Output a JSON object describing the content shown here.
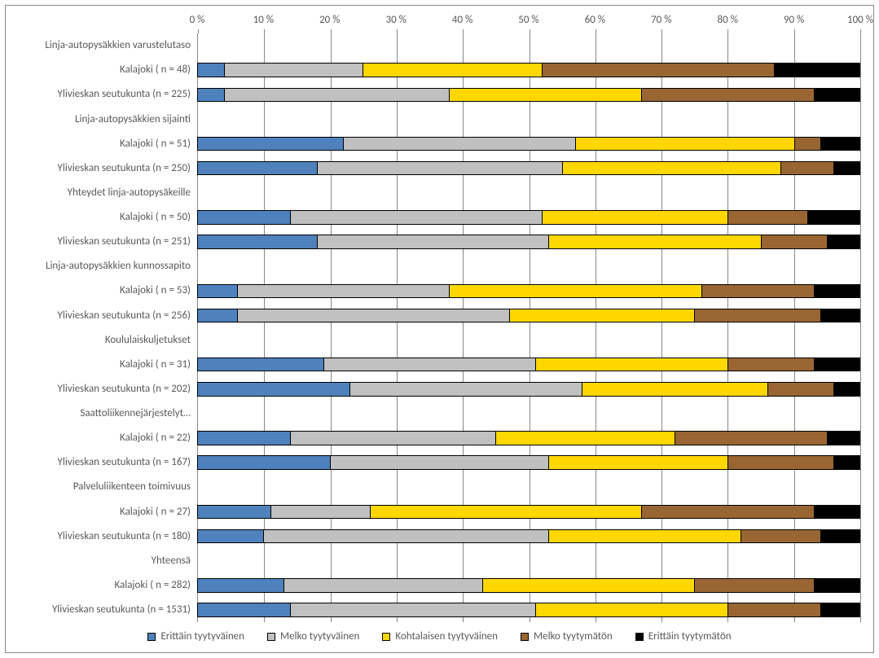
{
  "chart": {
    "type": "stacked-bar-horizontal",
    "xlim": [
      0,
      100
    ],
    "xtick_step": 10,
    "xtick_suffix": " %",
    "background_color": "#ffffff",
    "grid_color": "#888888",
    "border_color": "#888888",
    "label_color": "#595959",
    "label_fontsize": 13,
    "bar_border_color": "#000000",
    "series": [
      {
        "key": "s1",
        "label": "Erittäin tyytyväinen",
        "color": "#4f81bd"
      },
      {
        "key": "s2",
        "label": "Melko tyytyväinen",
        "color": "#c0c0c0"
      },
      {
        "key": "s3",
        "label": "Kohtalaisen tyytyväinen",
        "color": "#ffd700"
      },
      {
        "key": "s4",
        "label": "Melko tyytymätön",
        "color": "#996633"
      },
      {
        "key": "s5",
        "label": "Erittäin tyytymätön",
        "color": "#000000"
      }
    ],
    "rows": [
      {
        "label": "Linja-autopysäkkien varustelutaso",
        "values": null
      },
      {
        "label": "Kalajoki ( n = 48)",
        "values": [
          4,
          21,
          27,
          35,
          13
        ]
      },
      {
        "label": "Ylivieskan seutukunta (n = 225)",
        "values": [
          4,
          34,
          29,
          26,
          7
        ]
      },
      {
        "label": "Linja-autopysäkkien sijainti",
        "values": null
      },
      {
        "label": "Kalajoki ( n = 51)",
        "values": [
          22,
          35,
          33,
          4,
          6
        ]
      },
      {
        "label": "Ylivieskan seutukunta (n = 250)",
        "values": [
          18,
          37,
          33,
          8,
          4
        ]
      },
      {
        "label": "Yhteydet linja-autopysäkeille",
        "values": null
      },
      {
        "label": "Kalajoki ( n = 50)",
        "values": [
          14,
          38,
          28,
          12,
          8
        ]
      },
      {
        "label": "Ylivieskan seutukunta (n = 251)",
        "values": [
          18,
          35,
          32,
          10,
          5
        ]
      },
      {
        "label": "Linja-autopysäkkien kunnossapito",
        "values": null
      },
      {
        "label": "Kalajoki ( n = 53)",
        "values": [
          6,
          32,
          38,
          17,
          7
        ]
      },
      {
        "label": "Ylivieskan seutukunta (n = 256)",
        "values": [
          6,
          41,
          28,
          19,
          6
        ]
      },
      {
        "label": "Koululaiskuljetukset",
        "values": null
      },
      {
        "label": "Kalajoki ( n = 31)",
        "values": [
          19,
          32,
          29,
          13,
          7
        ]
      },
      {
        "label": "Ylivieskan seutukunta (n = 202)",
        "values": [
          23,
          35,
          28,
          10,
          4
        ]
      },
      {
        "label": "Saattoliikennejärjestelyt…",
        "values": null
      },
      {
        "label": "Kalajoki ( n = 22)",
        "values": [
          14,
          31,
          27,
          23,
          5
        ]
      },
      {
        "label": "Ylivieskan seutukunta (n = 167)",
        "values": [
          20,
          33,
          27,
          16,
          4
        ]
      },
      {
        "label": "Palveluliikenteen toimivuus",
        "values": null
      },
      {
        "label": "Kalajoki ( n = 27)",
        "values": [
          11,
          15,
          41,
          26,
          7
        ]
      },
      {
        "label": "Ylivieskan seutukunta (n = 180)",
        "values": [
          10,
          43,
          29,
          12,
          6
        ]
      },
      {
        "label": "Yhteensä",
        "values": null
      },
      {
        "label": "Kalajoki ( n = 282)",
        "values": [
          13,
          30,
          32,
          18,
          7
        ]
      },
      {
        "label": "Ylivieskan seutukunta (n = 1531)",
        "values": [
          14,
          37,
          29,
          14,
          6
        ]
      }
    ]
  }
}
